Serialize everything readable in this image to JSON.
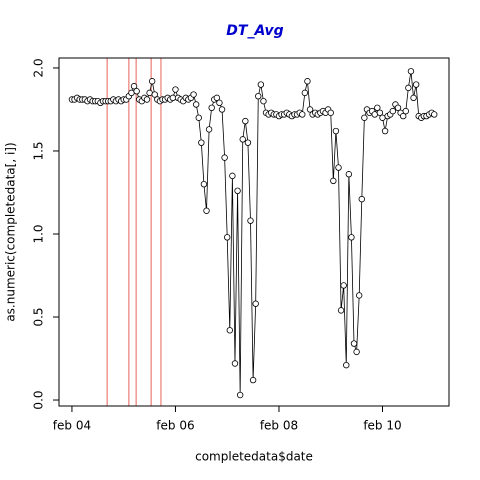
{
  "chart_data": {
    "type": "line",
    "title": "DT_Avg",
    "xlabel": "completedata$date",
    "ylabel": "as.numeric(completedata[, i])",
    "color": "#000000",
    "markers": true,
    "x": [
      4,
      4.05,
      4.1,
      4.15,
      4.2,
      4.25,
      4.3,
      4.35,
      4.4,
      4.45,
      4.5,
      4.55,
      4.6,
      4.65,
      4.7,
      4.75,
      4.8,
      4.85,
      4.9,
      4.95,
      5,
      5.05,
      5.1,
      5.15,
      5.2,
      5.25,
      5.3,
      5.35,
      5.4,
      5.45,
      5.5,
      5.55,
      5.6,
      5.65,
      5.7,
      5.75,
      5.8,
      5.85,
      5.9,
      5.95,
      6,
      6.05,
      6.1,
      6.15,
      6.2,
      6.25,
      6.3,
      6.35,
      6.4,
      6.45,
      6.5,
      6.55,
      6.6,
      6.65,
      6.7,
      6.75,
      6.8,
      6.85,
      6.9,
      6.95,
      7,
      7.05,
      7.1,
      7.15,
      7.2,
      7.25,
      7.3,
      7.35,
      7.4,
      7.45,
      7.5,
      7.55,
      7.6,
      7.65,
      7.7,
      7.75,
      7.8,
      7.85,
      7.9,
      7.95,
      8,
      8.05,
      8.1,
      8.15,
      8.2,
      8.25,
      8.3,
      8.35,
      8.4,
      8.45,
      8.5,
      8.55,
      8.6,
      8.65,
      8.7,
      8.75,
      8.8,
      8.85,
      8.9,
      8.95,
      9,
      9.05,
      9.1,
      9.15,
      9.2,
      9.25,
      9.3,
      9.35,
      9.4,
      9.45,
      9.5,
      9.55,
      9.6,
      9.65,
      9.7,
      9.75,
      9.8,
      9.85,
      9.9,
      9.95,
      10,
      10.05,
      10.1,
      10.15,
      10.2,
      10.25,
      10.3,
      10.35,
      10.4,
      10.45,
      10.5,
      10.55,
      10.6,
      10.65,
      10.7,
      10.75,
      10.8,
      10.85,
      10.9,
      10.95,
      11
    ],
    "values": [
      1.81,
      1.81,
      1.82,
      1.81,
      1.81,
      1.81,
      1.8,
      1.81,
      1.8,
      1.8,
      1.8,
      1.79,
      1.8,
      1.8,
      1.8,
      1.8,
      1.81,
      1.8,
      1.81,
      1.8,
      1.81,
      1.81,
      1.83,
      1.85,
      1.89,
      1.86,
      1.81,
      1.8,
      1.82,
      1.81,
      1.85,
      1.92,
      1.84,
      1.81,
      1.8,
      1.81,
      1.81,
      1.82,
      1.81,
      1.82,
      1.87,
      1.82,
      1.81,
      1.8,
      1.82,
      1.81,
      1.82,
      1.84,
      1.78,
      1.7,
      1.55,
      1.3,
      1.14,
      1.63,
      1.76,
      1.81,
      1.82,
      1.79,
      1.75,
      1.46,
      0.98,
      0.42,
      1.35,
      0.22,
      1.26,
      0.03,
      1.57,
      1.68,
      1.55,
      1.08,
      0.12,
      0.58,
      1.83,
      1.9,
      1.8,
      1.73,
      1.72,
      1.73,
      1.72,
      1.72,
      1.71,
      1.72,
      1.72,
      1.73,
      1.72,
      1.71,
      1.72,
      1.72,
      1.73,
      1.72,
      1.85,
      1.92,
      1.75,
      1.72,
      1.73,
      1.72,
      1.73,
      1.74,
      1.73,
      1.75,
      1.73,
      1.32,
      1.62,
      1.4,
      0.54,
      0.69,
      0.21,
      1.36,
      0.98,
      0.34,
      0.29,
      0.63,
      1.21,
      1.7,
      1.75,
      1.73,
      1.74,
      1.72,
      1.76,
      1.73,
      1.7,
      1.62,
      1.71,
      1.72,
      1.74,
      1.78,
      1.76,
      1.73,
      1.71,
      1.74,
      1.88,
      1.98,
      1.82,
      1.9,
      1.71,
      1.7,
      1.71,
      1.71,
      1.72,
      1.73,
      1.72
    ],
    "xlim": [
      3.75,
      11.285
    ],
    "ylim": [
      -0.036,
      2.06
    ],
    "xticks": [
      {
        "value": 4,
        "label": "feb 04"
      },
      {
        "value": 6,
        "label": "feb 06"
      },
      {
        "value": 8,
        "label": "feb 08"
      },
      {
        "value": 10,
        "label": "feb 10"
      }
    ],
    "yticks": [
      {
        "value": 0,
        "label": "0.0"
      },
      {
        "value": 0.5,
        "label": "0.5"
      },
      {
        "value": 1,
        "label": "1.0"
      },
      {
        "value": 1.5,
        "label": "1.5"
      },
      {
        "value": 2,
        "label": "2.0"
      }
    ],
    "vlines": [
      4.68,
      5.1,
      5.24,
      5.53,
      5.72
    ],
    "vline_color": "#e8635a",
    "title_color": "#0000cd"
  }
}
